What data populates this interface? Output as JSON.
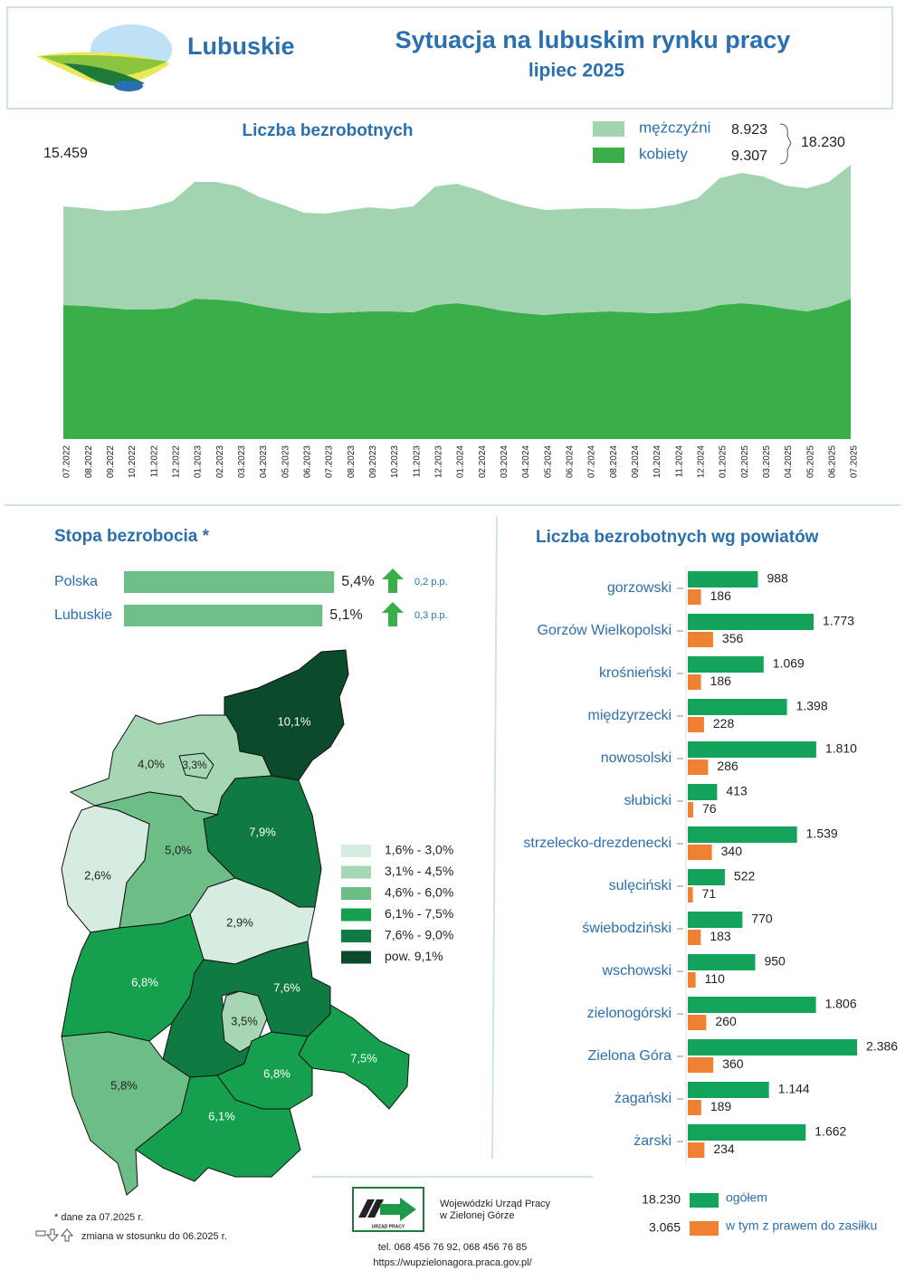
{
  "header": {
    "brand": "Lubuskie",
    "title": "Sytuacja na lubuskim rynku pracy",
    "subtitle": "lipiec 2025"
  },
  "chart_data": [
    {
      "type": "area",
      "stacked": true,
      "title": "Liczba bezrobotnych",
      "x": [
        "07.2022",
        "08.2022",
        "09.2022",
        "10.2022",
        "11.2022",
        "12.2022",
        "01.2023",
        "02.2023",
        "03.2023",
        "04.2023",
        "05.2023",
        "06.2023",
        "07.2023",
        "08.2023",
        "09.2023",
        "10.2023",
        "11.2023",
        "12.2023",
        "01.2024",
        "02.2024",
        "03.2024",
        "04.2024",
        "05.2024",
        "06.2024",
        "07.2024",
        "08.2024",
        "09.2024",
        "10.2024",
        "11.2024",
        "12.2024",
        "01.2025",
        "02.2025",
        "03.2025",
        "04.2025",
        "05.2025",
        "06.2025",
        "07.2025"
      ],
      "series": [
        {
          "name": "mężczyźni",
          "color": "#a3d4b1",
          "label": "8.923",
          "values": [
            6554,
            6498,
            6438,
            6619,
            6800,
            7100,
            7762,
            7822,
            7641,
            7220,
            6980,
            6619,
            6618,
            6799,
            6920,
            6799,
            7040,
            7882,
            7942,
            7702,
            7401,
            7160,
            6980,
            6919,
            6919,
            6859,
            6859,
            6979,
            7160,
            7461,
            8424,
            8664,
            8544,
            8184,
            8183,
            8303,
            8923
          ]
        },
        {
          "name": "kobiety",
          "color": "#3aae48",
          "label": "9.307",
          "values": [
            8905,
            8845,
            8725,
            8604,
            8604,
            8725,
            9326,
            9266,
            9146,
            8845,
            8604,
            8424,
            8364,
            8424,
            8484,
            8484,
            8424,
            8905,
            9026,
            8845,
            8544,
            8364,
            8243,
            8364,
            8424,
            8484,
            8424,
            8364,
            8424,
            8544,
            8905,
            9026,
            8905,
            8664,
            8484,
            8785,
            9307
          ]
        }
      ],
      "annotations": [
        "15.459",
        "18.230"
      ]
    },
    {
      "type": "bar",
      "orientation": "horizontal",
      "title": "Stopa bezrobocia *",
      "color": "#6dbf87",
      "categories": [
        "Polska",
        "Lubuskie"
      ],
      "values": [
        5.4,
        5.1
      ],
      "value_labels": [
        "5,4%",
        "5,1%"
      ],
      "change_labels": [
        "0,2 p.p.",
        "0,3 p.p."
      ],
      "change_color": "#3aae48"
    },
    {
      "type": "choropleth",
      "regions": [
        {
          "value": 10.1,
          "label": "10,1%"
        },
        {
          "value": 4.0,
          "label": "4,0%"
        },
        {
          "value": 3.3,
          "label": "3,3%"
        },
        {
          "value": 7.9,
          "label": "7,9%"
        },
        {
          "value": 2.6,
          "label": "2,6%"
        },
        {
          "value": 5.0,
          "label": "5,0%"
        },
        {
          "value": 2.9,
          "label": "2,9%"
        },
        {
          "value": 6.8,
          "label": "6,8%"
        },
        {
          "value": 7.6,
          "label": "7,6%"
        },
        {
          "value": 3.5,
          "label": "3,5%"
        },
        {
          "value": 7.5,
          "label": "7,5%"
        },
        {
          "value": 6.8,
          "label": "6,8%"
        },
        {
          "value": 5.8,
          "label": "5,8%"
        },
        {
          "value": 6.1,
          "label": "6,1%"
        }
      ],
      "breaks": [
        3.0,
        4.5,
        6.0,
        7.5,
        9.0
      ],
      "legend": [
        {
          "label": "1,6% - 3,0%",
          "color": "#d7ece0"
        },
        {
          "label": "3,1% - 4,5%",
          "color": "#a6d6b4"
        },
        {
          "label": "4,6% - 6,0%",
          "color": "#6cbd86"
        },
        {
          "label": "6,1% - 7,5%",
          "color": "#14a04c"
        },
        {
          "label": "7,6% - 9,0%",
          "color": "#107a43"
        },
        {
          "label": "pow. 9,1%",
          "color": "#0b4a2a"
        }
      ]
    },
    {
      "type": "bar",
      "orientation": "horizontal",
      "title": "Liczba bezrobotnych wg powiatów",
      "categories": [
        "gorzowski",
        "Gorzów Wielkopolski",
        "krośnieński",
        "międzyrzecki",
        "nowosolski",
        "słubicki",
        "strzelecko-drezdenecki",
        "sulęciński",
        "świebodziński",
        "wschowski",
        "zielonogórski",
        "Zielona Góra",
        "żagański",
        "żarski"
      ],
      "series": [
        {
          "name": "ogółem",
          "color": "#14a35a",
          "total_label": "18.230",
          "values": [
            988,
            1773,
            1069,
            1398,
            1810,
            413,
            1539,
            522,
            770,
            950,
            1806,
            2386,
            1144,
            1662
          ],
          "value_labels": [
            "988",
            "1.773",
            "1.069",
            "1.398",
            "1.810",
            "413",
            "1.539",
            "522",
            "770",
            "950",
            "1.806",
            "2.386",
            "1.144",
            "1.662"
          ]
        },
        {
          "name": "w tym z prawem do zasiłku",
          "color": "#ef8133",
          "total_label": "3.065",
          "values": [
            186,
            356,
            186,
            228,
            286,
            76,
            340,
            71,
            183,
            110,
            260,
            360,
            189,
            234
          ]
        }
      ]
    }
  ],
  "footer": {
    "note": "* dane za 07.2025 r.",
    "change_note": "zmiana w stosunku do 06.2025 r.",
    "logo_text": "URZĄD PRACY",
    "org": [
      "Wojewódzki Urząd Pracy",
      "w Zielonej Górze"
    ],
    "phone": "tel. 068 456 76 92,  068 456 76 85",
    "url": "https://wupzielonagora.praca.gov.pl/"
  }
}
